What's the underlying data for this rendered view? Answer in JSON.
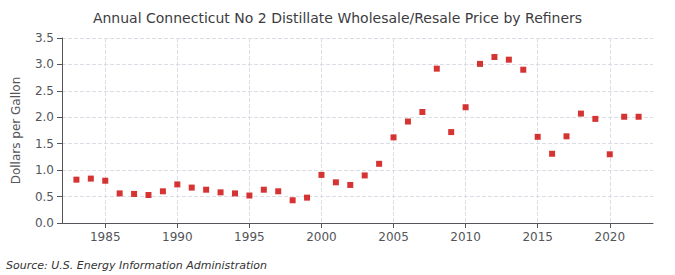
{
  "chart_data": {
    "type": "scatter",
    "title": "Annual Connecticut No 2 Distillate Wholesale/Resale Price by Refiners",
    "ylabel": "Dollars per Gallon",
    "source": "Source: U.S. Energy Information Administration",
    "x": [
      1983,
      1984,
      1985,
      1986,
      1987,
      1988,
      1989,
      1990,
      1991,
      1992,
      1993,
      1994,
      1995,
      1996,
      1997,
      1998,
      1999,
      2000,
      2001,
      2002,
      2003,
      2004,
      2005,
      2006,
      2007,
      2008,
      2009,
      2010,
      2011,
      2012,
      2013,
      2014,
      2015,
      2016,
      2017,
      2018,
      2019,
      2020,
      2021,
      2022
    ],
    "values": [
      0.82,
      0.84,
      0.8,
      0.56,
      0.55,
      0.53,
      0.6,
      0.73,
      0.67,
      0.63,
      0.58,
      0.56,
      0.52,
      0.63,
      0.6,
      0.43,
      0.48,
      0.91,
      0.77,
      0.72,
      0.9,
      1.12,
      1.62,
      1.92,
      2.1,
      2.92,
      1.72,
      2.19,
      3.01,
      3.14,
      3.09,
      2.9,
      1.63,
      1.31,
      1.64,
      2.07,
      1.97,
      1.3,
      2.01,
      2.01
    ],
    "color": "#cc0000",
    "marker": "square",
    "xlim": [
      1982,
      2023
    ],
    "xticks": [
      1985,
      1990,
      1995,
      2000,
      2005,
      2010,
      2015,
      2020
    ],
    "ylim": [
      0,
      3.5
    ],
    "yticks": [
      {
        "value": 0,
        "label": "0.0"
      },
      0.5,
      {
        "value": 1,
        "label": "1.0"
      },
      1.5,
      {
        "value": 2,
        "label": "2.0"
      },
      2.5,
      {
        "value": 3,
        "label": "3.0"
      },
      3.5
    ],
    "grid": true
  }
}
